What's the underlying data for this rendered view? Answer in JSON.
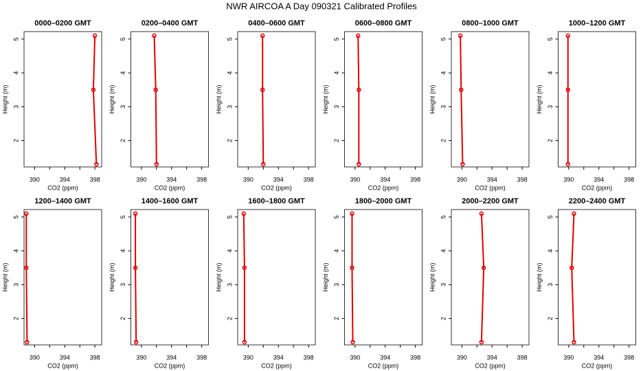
{
  "title": "NWR AIRCOA A  Day 090321  Calibrated Profiles",
  "chart_data": [
    {
      "type": "line",
      "title": "0000–0200 GMT",
      "xlabel": "CO2 (ppm)",
      "ylabel": "Height (m)",
      "x": [
        398.2,
        397.8,
        398.0
      ],
      "values": [
        1.3,
        3.5,
        5.1
      ],
      "color": "#dd0000",
      "xlim": [
        388.6,
        398.9
      ],
      "ylim": [
        1.22,
        5.22
      ],
      "xticks": [
        390,
        394,
        398
      ],
      "xticks_minor": [
        392,
        396
      ],
      "yticks": [
        2,
        3,
        4,
        5
      ]
    },
    {
      "type": "line",
      "title": "0200–0400 GMT",
      "xlabel": "CO2 (ppm)",
      "ylabel": "Height (m)",
      "x": [
        392.0,
        391.9,
        391.7
      ],
      "values": [
        1.3,
        3.5,
        5.1
      ],
      "color": "#dd0000",
      "xlim": [
        388.6,
        398.9
      ],
      "ylim": [
        1.22,
        5.22
      ],
      "xticks": [
        390,
        394,
        398
      ],
      "xticks_minor": [
        392,
        396
      ],
      "yticks": [
        2,
        3,
        4,
        5
      ]
    },
    {
      "type": "line",
      "title": "0400–0600 GMT",
      "xlabel": "CO2 (ppm)",
      "ylabel": "Height (m)",
      "x": [
        392.0,
        391.9,
        391.9
      ],
      "values": [
        1.3,
        3.5,
        5.1
      ],
      "color": "#dd0000",
      "xlim": [
        388.6,
        398.9
      ],
      "ylim": [
        1.22,
        5.22
      ],
      "xticks": [
        390,
        394,
        398
      ],
      "xticks_minor": [
        392,
        396
      ],
      "yticks": [
        2,
        3,
        4,
        5
      ]
    },
    {
      "type": "line",
      "title": "0600–0800 GMT",
      "xlabel": "CO2 (ppm)",
      "ylabel": "Height (m)",
      "x": [
        390.5,
        390.5,
        390.4
      ],
      "values": [
        1.3,
        3.5,
        5.1
      ],
      "color": "#dd0000",
      "xlim": [
        388.6,
        398.9
      ],
      "ylim": [
        1.22,
        5.22
      ],
      "xticks": [
        390,
        394,
        398
      ],
      "xticks_minor": [
        392,
        396
      ],
      "yticks": [
        2,
        3,
        4,
        5
      ]
    },
    {
      "type": "line",
      "title": "0800–1000 GMT",
      "xlabel": "CO2 (ppm)",
      "ylabel": "Height (m)",
      "x": [
        390.1,
        389.9,
        389.8
      ],
      "values": [
        1.3,
        3.5,
        5.1
      ],
      "color": "#dd0000",
      "xlim": [
        388.6,
        398.9
      ],
      "ylim": [
        1.22,
        5.22
      ],
      "xticks": [
        390,
        394,
        398
      ],
      "xticks_minor": [
        392,
        396
      ],
      "yticks": [
        2,
        3,
        4,
        5
      ]
    },
    {
      "type": "line",
      "title": "1000–1200 GMT",
      "xlabel": "CO2 (ppm)",
      "ylabel": "Height (m)",
      "x": [
        389.9,
        389.9,
        389.9
      ],
      "values": [
        1.3,
        3.5,
        5.1
      ],
      "color": "#dd0000",
      "xlim": [
        388.6,
        398.9
      ],
      "ylim": [
        1.22,
        5.22
      ],
      "xticks": [
        390,
        394,
        398
      ],
      "xticks_minor": [
        392,
        396
      ],
      "yticks": [
        2,
        3,
        4,
        5
      ]
    },
    {
      "type": "line",
      "title": "1200–1400 GMT",
      "xlabel": "CO2 (ppm)",
      "ylabel": "Height (m)",
      "x": [
        389.0,
        388.9,
        388.9
      ],
      "values": [
        1.3,
        3.5,
        5.1
      ],
      "color": "#dd0000",
      "xlim": [
        388.6,
        398.9
      ],
      "ylim": [
        1.22,
        5.22
      ],
      "xticks": [
        390,
        394,
        398
      ],
      "xticks_minor": [
        392,
        396
      ],
      "yticks": [
        2,
        3,
        4,
        5
      ]
    },
    {
      "type": "line",
      "title": "1400–1600 GMT",
      "xlabel": "CO2 (ppm)",
      "ylabel": "Height (m)",
      "x": [
        389.3,
        389.2,
        389.2
      ],
      "values": [
        1.3,
        3.5,
        5.1
      ],
      "color": "#dd0000",
      "xlim": [
        388.6,
        398.9
      ],
      "ylim": [
        1.22,
        5.22
      ],
      "xticks": [
        390,
        394,
        398
      ],
      "xticks_minor": [
        392,
        396
      ],
      "yticks": [
        2,
        3,
        4,
        5
      ]
    },
    {
      "type": "line",
      "title": "1600–1800 GMT",
      "xlabel": "CO2 (ppm)",
      "ylabel": "Height (m)",
      "x": [
        389.5,
        389.5,
        389.4
      ],
      "values": [
        1.3,
        3.5,
        5.1
      ],
      "color": "#dd0000",
      "xlim": [
        388.6,
        398.9
      ],
      "ylim": [
        1.22,
        5.22
      ],
      "xticks": [
        390,
        394,
        398
      ],
      "xticks_minor": [
        392,
        396
      ],
      "yticks": [
        2,
        3,
        4,
        5
      ]
    },
    {
      "type": "line",
      "title": "1800–2000 GMT",
      "xlabel": "CO2 (ppm)",
      "ylabel": "Height (m)",
      "x": [
        389.7,
        389.6,
        389.6
      ],
      "values": [
        1.3,
        3.5,
        5.1
      ],
      "color": "#dd0000",
      "xlim": [
        388.6,
        398.9
      ],
      "ylim": [
        1.22,
        5.22
      ],
      "xticks": [
        390,
        394,
        398
      ],
      "xticks_minor": [
        392,
        396
      ],
      "yticks": [
        2,
        3,
        4,
        5
      ]
    },
    {
      "type": "line",
      "title": "2000–2200 GMT",
      "xlabel": "CO2 (ppm)",
      "ylabel": "Height (m)",
      "x": [
        392.6,
        392.9,
        392.6
      ],
      "values": [
        1.3,
        3.5,
        5.1
      ],
      "color": "#dd0000",
      "xlim": [
        388.6,
        398.9
      ],
      "ylim": [
        1.22,
        5.22
      ],
      "xticks": [
        390,
        394,
        398
      ],
      "xticks_minor": [
        392,
        396
      ],
      "yticks": [
        2,
        3,
        4,
        5
      ]
    },
    {
      "type": "line",
      "title": "2200–2400 GMT",
      "xlabel": "CO2 (ppm)",
      "ylabel": "Height (m)",
      "x": [
        390.7,
        390.4,
        390.7
      ],
      "values": [
        1.3,
        3.5,
        5.1
      ],
      "color": "#dd0000",
      "xlim": [
        388.6,
        398.9
      ],
      "ylim": [
        1.22,
        5.22
      ],
      "xticks": [
        390,
        394,
        398
      ],
      "xticks_minor": [
        392,
        396
      ],
      "yticks": [
        2,
        3,
        4,
        5
      ]
    }
  ]
}
